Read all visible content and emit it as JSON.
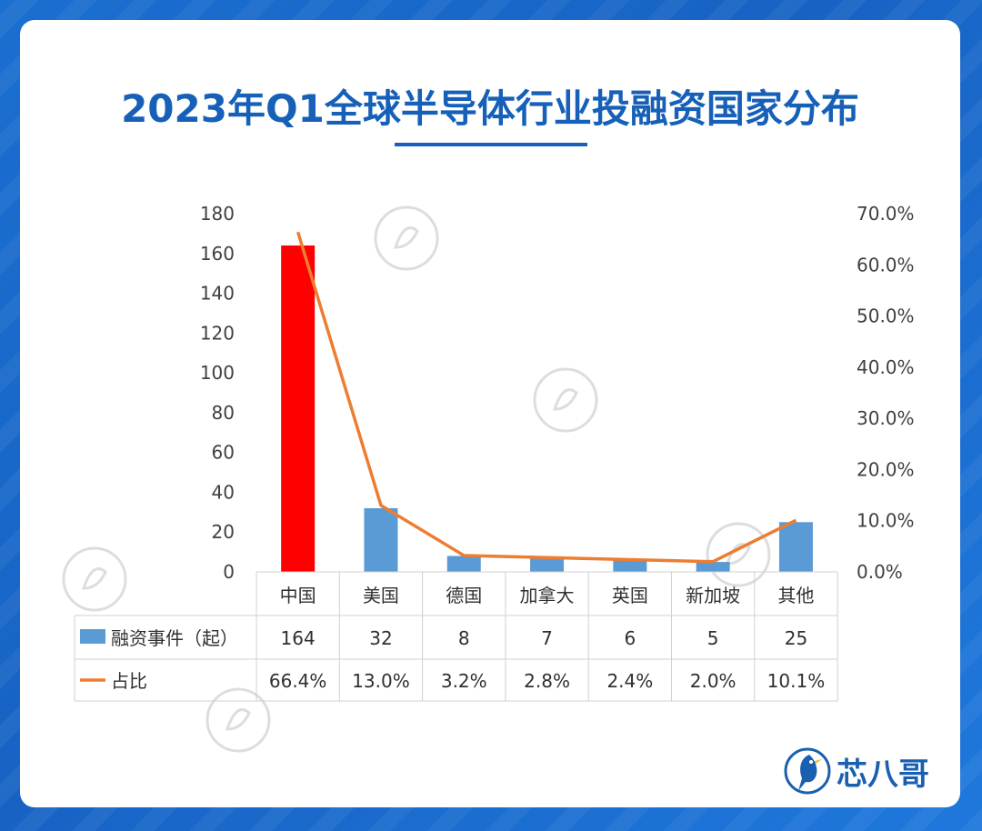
{
  "title": "2023年Q1全球半导体行业投融资国家分布",
  "brand": {
    "name": "芯八哥",
    "color": "#1a5fb0"
  },
  "chart_data": {
    "type": "bar",
    "categories": [
      "中国",
      "美国",
      "德国",
      "加拿大",
      "英国",
      "新加坡",
      "其他"
    ],
    "series": [
      {
        "name": "融资事件（起）",
        "type": "bar",
        "axis": "left",
        "values": [
          164,
          32,
          8,
          7,
          6,
          5,
          25
        ],
        "color": "#5b9bd5",
        "highlight_color": "#ff0000",
        "highlight_index": 0
      },
      {
        "name": "占比",
        "type": "line",
        "axis": "right",
        "values": [
          66.4,
          13.0,
          3.2,
          2.8,
          2.4,
          2.0,
          10.1
        ],
        "labels": [
          "66.4%",
          "13.0%",
          "3.2%",
          "2.8%",
          "2.4%",
          "2.0%",
          "10.1%"
        ],
        "color": "#ed7d31"
      }
    ],
    "y_left": {
      "ylim": [
        0,
        180
      ],
      "ticks": [
        0,
        20,
        40,
        60,
        80,
        100,
        120,
        140,
        160,
        180
      ]
    },
    "y_right": {
      "ylim": [
        0,
        70
      ],
      "ticks": [
        "0.0%",
        "10.0%",
        "20.0%",
        "30.0%",
        "40.0%",
        "50.0%",
        "60.0%",
        "70.0%"
      ]
    },
    "grid": false,
    "legend": "data-table"
  }
}
